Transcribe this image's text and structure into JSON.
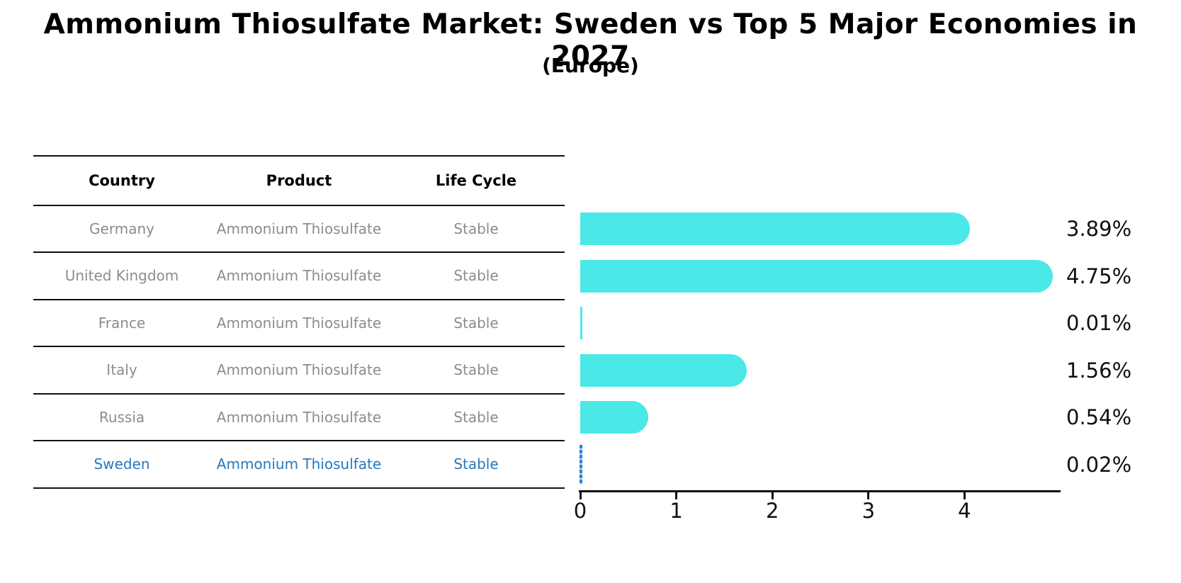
{
  "title": "Ammonium Thiosulfate Market: Sweden vs Top 5 Major Economies in 2027",
  "subtitle": "(Europe)",
  "table": {
    "headers": [
      "Country",
      "Product",
      "Life Cycle"
    ],
    "rows": [
      {
        "country": "Germany",
        "product": "Ammonium Thiosulfate",
        "life_cycle": "Stable"
      },
      {
        "country": "United Kingdom",
        "product": "Ammonium Thiosulfate",
        "life_cycle": "Stable"
      },
      {
        "country": "France",
        "product": "Ammonium Thiosulfate",
        "life_cycle": "Stable"
      },
      {
        "country": "Italy",
        "product": "Ammonium Thiosulfate",
        "life_cycle": "Stable"
      },
      {
        "country": "Russia",
        "product": "Ammonium Thiosulfate",
        "life_cycle": "Stable"
      },
      {
        "country": "Sweden",
        "product": "Ammonium Thiosulfate",
        "life_cycle": "Stable"
      }
    ]
  },
  "chart_data": {
    "type": "bar",
    "orientation": "horizontal",
    "title": "Ammonium Thiosulfate Market: Sweden vs Top 5 Major Economies in 2027",
    "subtitle": "(Europe)",
    "categories": [
      "Germany",
      "United Kingdom",
      "France",
      "Italy",
      "Russia",
      "Sweden"
    ],
    "values": [
      3.89,
      4.75,
      0.01,
      1.56,
      0.54,
      0.02
    ],
    "value_labels": [
      "3.89%",
      "4.75%",
      "0.01%",
      "1.56%",
      "0.54%",
      "0.02%"
    ],
    "x_ticks": [
      "0",
      "1",
      "2",
      "3",
      "4"
    ],
    "xlim": [
      0,
      5
    ],
    "grid": false,
    "legend": "none",
    "bar_color": "#4be8e8",
    "highlight_index": 5,
    "highlight_style": "blue-dashed-line",
    "highlight_color": "#2e82d2",
    "highlight_text_color": "#2878be"
  }
}
